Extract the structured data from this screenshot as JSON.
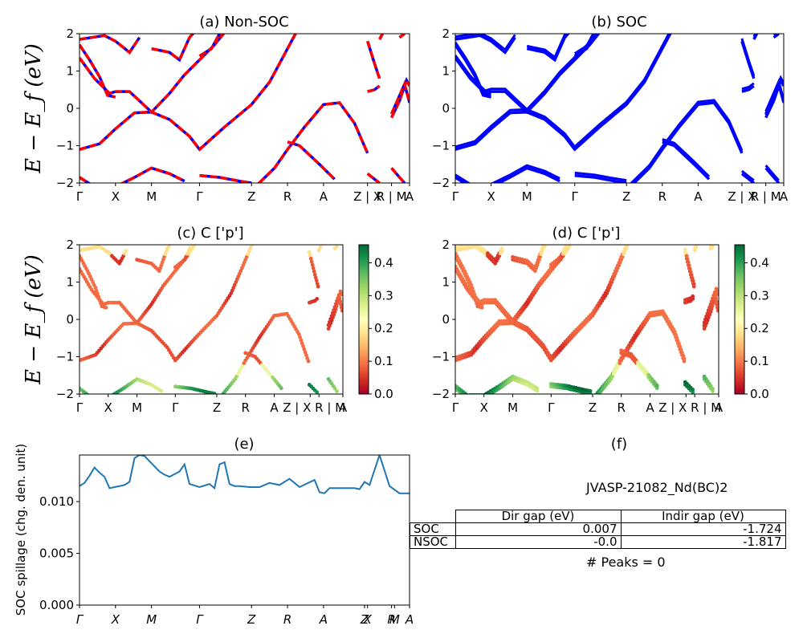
{
  "chart_data": [
    {
      "type": "line",
      "title": "(a) Non-SOC",
      "ylabel": "E − E_f (eV)",
      "ylim": [
        -2,
        2
      ],
      "yticks": [
        "2",
        "1",
        "0",
        "−1",
        "−2"
      ],
      "xticks": [
        "Γ",
        "X",
        "M",
        "Γ",
        "Z",
        "R",
        "A",
        "Z | X",
        "R | M",
        "A"
      ],
      "series_colors": [
        "#0000ff",
        "#ff0000"
      ],
      "line_style": "blue solid overlaid by red dashed",
      "bands": [
        [
          [
            0,
            -1.1
          ],
          [
            0.35,
            -0.55
          ],
          [
            0.55,
            -0.15
          ],
          [
            0.75,
            0.05
          ],
          [
            1.1,
            -0.5
          ],
          [
            1.55,
            -1.05
          ],
          [
            2.05,
            0.1
          ],
          [
            2.45,
            0.6
          ]
        ],
        [
          [
            0,
            1.35
          ],
          [
            0.3,
            0.5
          ],
          [
            0.5,
            0.45
          ],
          [
            1.0,
            -0.05
          ],
          [
            1.4,
            0.6
          ],
          [
            1.85,
            1.5
          ]
        ],
        [
          [
            0,
            -1.85
          ],
          [
            0.35,
            -2
          ],
          [
            0.7,
            -1.6
          ],
          [
            1.0,
            -1.8
          ],
          [
            1.3,
            -1.9
          ]
        ],
        [
          [
            2.75,
            -0.3
          ],
          [
            2.95,
            0.8
          ],
          [
            3.25,
            0.15
          ]
        ],
        [
          [
            2.55,
            -1.05
          ],
          [
            2.1,
            -1.7
          ]
        ]
      ]
    },
    {
      "type": "line",
      "title": "(b) SOC",
      "ylim": [
        -2,
        2
      ],
      "yticks": [
        "2",
        "1",
        "0",
        "−1",
        "−2"
      ],
      "xticks": [
        "Γ",
        "X",
        "M",
        "Γ",
        "Z",
        "R",
        "A",
        "Z | X",
        "R | M",
        "A"
      ],
      "series_colors": [
        "#0000ff"
      ]
    },
    {
      "type": "scatter",
      "title": "(c)  C ['p']",
      "ylabel": "E − E_f (eV)",
      "ylim": [
        -2,
        2
      ],
      "yticks": [
        "2",
        "1",
        "0",
        "−1",
        "−2"
      ],
      "xticks": [
        "Γ",
        "X",
        "M",
        "Γ",
        "Z",
        "R",
        "A",
        "Z | X R | M",
        "A"
      ],
      "colorbar": {
        "cmap": "RdYlGn",
        "min": 0.0,
        "max": 0.45,
        "ticks": [
          "0.4",
          "0.3",
          "0.2",
          "0.1",
          "0.0"
        ]
      }
    },
    {
      "type": "scatter",
      "title": "(d) C ['p']",
      "ylim": [
        -2,
        2
      ],
      "yticks": [
        "2",
        "1",
        "0",
        "−1",
        "−2"
      ],
      "xticks": [
        "Γ",
        "X",
        "M",
        "Γ",
        "Z",
        "R",
        "A",
        "Z | X R | M",
        "A"
      ],
      "colorbar": {
        "cmap": "RdYlGn",
        "min": 0.0,
        "max": 0.45,
        "ticks": [
          "0.4",
          "0.3",
          "0.2",
          "0.1",
          "0.0"
        ]
      }
    },
    {
      "type": "line",
      "title": "(e)",
      "ylabel": "SOC spillage (chg. den. unit)",
      "ylim": [
        0,
        0.0145
      ],
      "yticks": [
        "0.010",
        "0.005",
        "0.000"
      ],
      "xticks": [
        "Γ",
        "X",
        "M",
        "Γ",
        "Z",
        "R",
        "A",
        "Z",
        "X",
        "R",
        "M",
        "A"
      ],
      "series_colors": [
        "#1f77b4"
      ],
      "x": [
        0,
        0.05,
        0.1,
        0.15,
        0.2,
        0.25,
        0.3,
        0.35,
        0.45,
        0.5,
        0.55,
        0.6,
        0.65,
        0.8,
        0.85,
        0.9,
        1.0,
        1.05,
        1.1,
        1.2,
        1.3,
        1.35,
        1.4,
        1.45,
        1.5,
        1.55,
        1.6,
        1.7,
        1.8,
        1.9,
        2.0,
        2.05,
        2.1,
        2.15,
        2.2,
        2.35,
        2.4,
        2.45,
        2.5,
        2.55,
        2.65,
        2.75,
        2.8,
        2.85,
        2.9,
        3.0,
        3.1,
        3.2,
        3.3
      ],
      "y": [
        0.0115,
        0.0118,
        0.0125,
        0.0133,
        0.0128,
        0.0124,
        0.0113,
        0.0114,
        0.0116,
        0.0119,
        0.0142,
        0.0145,
        0.0144,
        0.0129,
        0.0126,
        0.0124,
        0.0129,
        0.0136,
        0.0117,
        0.0114,
        0.0117,
        0.0113,
        0.0136,
        0.0138,
        0.0117,
        0.0115,
        0.0115,
        0.0114,
        0.0114,
        0.0118,
        0.0116,
        0.0119,
        0.0122,
        0.0118,
        0.0114,
        0.0121,
        0.0109,
        0.0108,
        0.0113,
        0.0113,
        0.0113,
        0.0113,
        0.0112,
        0.0119,
        0.0116,
        0.0145,
        0.0115,
        0.0108,
        0.0108
      ]
    }
  ],
  "panel_f": {
    "title": "(f)",
    "material": "JVASP-21082_Nd(BC)2",
    "table": {
      "headers": [
        "Dir gap (eV)",
        "Indir gap (eV)"
      ],
      "rows": [
        {
          "label": "SOC",
          "dir": "0.007",
          "indir": "-1.724"
        },
        {
          "label": "NSOC",
          "dir": "-0.0",
          "indir": "-1.817"
        }
      ]
    },
    "peaks": "# Peaks = 0"
  }
}
